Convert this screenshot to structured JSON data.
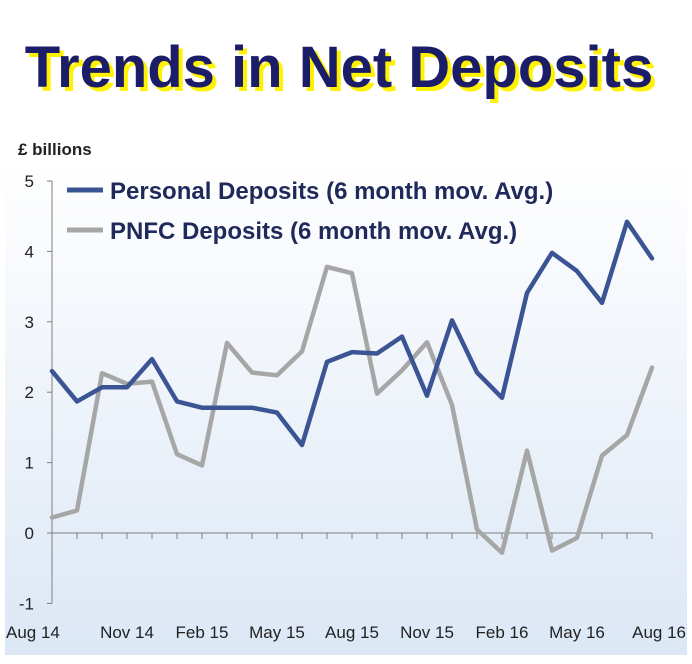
{
  "chart_data": {
    "type": "line",
    "title": "Trends in Net Deposits",
    "ylabel": "£ billions",
    "xlabel": "",
    "ylim": [
      -1,
      5
    ],
    "yticks": [
      5,
      4,
      3,
      2,
      1,
      0,
      -1
    ],
    "x_tick_labels": [
      "Aug 14",
      "Nov 14",
      "Feb 15",
      "May 15",
      "Aug 15",
      "Nov 15",
      "Feb 16",
      "May 16",
      "Aug 16"
    ],
    "x": [
      "Aug 14",
      "Sep 14",
      "Oct 14",
      "Nov 14",
      "Dec 14",
      "Jan 15",
      "Feb 15",
      "Mar 15",
      "Apr 15",
      "May 15",
      "Jun 15",
      "Jul 15",
      "Aug 15",
      "Sep 15",
      "Oct 15",
      "Nov 15",
      "Dec 15",
      "Jan 16",
      "Feb 16",
      "Mar 16",
      "Apr 16",
      "May 16",
      "Jun 16",
      "Jul 16",
      "Aug 16"
    ],
    "grid": false,
    "legend_position": "top",
    "series": [
      {
        "name": "Personal Deposits (6 month mov. Avg.)",
        "color": "#3b5494",
        "values": [
          2.3,
          1.87,
          2.07,
          2.07,
          2.47,
          1.87,
          1.78,
          1.78,
          1.78,
          1.71,
          1.25,
          2.43,
          2.57,
          2.55,
          2.79,
          1.95,
          3.02,
          2.28,
          1.92,
          3.41,
          3.98,
          3.72,
          3.27,
          4.42,
          3.9
        ]
      },
      {
        "name": "PNFC Deposits (6 month mov. Avg.)",
        "color": "#a6a6a6",
        "values": [
          0.22,
          0.32,
          2.27,
          2.12,
          2.15,
          1.12,
          0.96,
          2.7,
          2.28,
          2.24,
          2.58,
          3.78,
          3.69,
          1.98,
          2.31,
          2.71,
          1.82,
          0.05,
          -0.28,
          1.17,
          -0.25,
          -0.07,
          1.1,
          1.39,
          2.35
        ]
      }
    ]
  }
}
